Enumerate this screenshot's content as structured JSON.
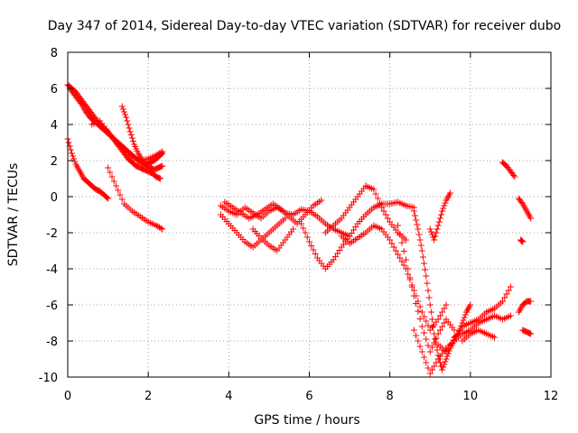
{
  "chart_data": {
    "type": "scatter",
    "title": "Day 347 of 2014, Sidereal Day-to-day VTEC variation (SDTVAR) for receiver dubo",
    "xlabel": "GPS time / hours",
    "ylabel": "SDTVAR / TECUs",
    "xlim": [
      0,
      12
    ],
    "ylim": [
      -10,
      8
    ],
    "x_ticks": [
      0,
      2,
      4,
      6,
      8,
      10,
      12
    ],
    "y_ticks": [
      -10,
      -8,
      -6,
      -4,
      -2,
      0,
      2,
      4,
      6,
      8
    ],
    "grid": true,
    "marker": "+",
    "color": "#ff0000",
    "segments": [
      {
        "x": [
          0.0,
          0.1,
          0.2,
          0.3,
          0.4,
          0.5,
          0.6,
          0.7,
          0.8,
          0.9,
          1.0,
          1.1,
          1.2,
          1.3,
          1.4,
          1.5,
          1.6,
          1.7,
          1.8,
          1.9,
          2.0,
          2.1,
          2.2,
          2.3
        ],
        "y": [
          6.2,
          6.0,
          5.8,
          5.5,
          5.2,
          4.9,
          4.6,
          4.3,
          4.0,
          3.8,
          3.6,
          3.3,
          3.0,
          2.7,
          2.4,
          2.1,
          1.9,
          1.7,
          1.6,
          1.5,
          1.4,
          1.3,
          1.1,
          1.0
        ]
      },
      {
        "x": [
          0.05,
          0.15,
          0.25,
          0.35,
          0.45,
          0.55,
          0.65,
          0.75,
          0.85,
          0.95,
          1.05,
          1.15,
          1.25,
          1.35,
          1.45,
          1.55,
          1.65,
          1.75,
          1.85,
          1.95,
          2.05,
          2.15,
          2.25,
          2.35
        ],
        "y": [
          6.0,
          5.7,
          5.4,
          5.1,
          4.7,
          4.4,
          4.2,
          4.0,
          3.8,
          3.6,
          3.4,
          3.2,
          3.0,
          2.8,
          2.6,
          2.4,
          2.2,
          2.0,
          1.9,
          1.8,
          1.9,
          2.0,
          2.2,
          2.4
        ]
      },
      {
        "x": [
          0.6,
          0.8,
          1.0,
          1.2,
          1.4,
          1.6,
          1.8,
          2.0,
          2.2,
          2.35
        ],
        "y": [
          4.0,
          4.2,
          3.6,
          3.0,
          2.6,
          2.2,
          2.0,
          2.1,
          2.3,
          2.5
        ]
      },
      {
        "x": [
          1.35,
          1.45,
          1.55,
          1.65,
          1.75,
          1.85,
          1.95,
          2.05,
          2.15,
          2.25,
          2.35
        ],
        "y": [
          5.0,
          4.4,
          3.6,
          2.9,
          2.4,
          2.0,
          1.7,
          1.6,
          1.5,
          1.6,
          1.7
        ]
      },
      {
        "x": [
          0.0,
          0.1,
          0.2,
          0.3,
          0.4,
          0.5,
          0.6,
          0.7,
          0.8,
          0.9,
          1.0
        ],
        "y": [
          3.2,
          2.4,
          1.8,
          1.4,
          1.0,
          0.8,
          0.6,
          0.4,
          0.3,
          0.1,
          -0.1
        ]
      },
      {
        "x": [
          1.0,
          1.2,
          1.4,
          1.6,
          1.8,
          2.0,
          2.2,
          2.35
        ],
        "y": [
          1.6,
          0.6,
          -0.4,
          -0.8,
          -1.1,
          -1.4,
          -1.6,
          -1.8
        ]
      },
      {
        "x": [
          3.8,
          4.0,
          4.2,
          4.4,
          4.6,
          4.8,
          5.0,
          5.2,
          5.4,
          5.6,
          5.8,
          6.0,
          6.2,
          6.4,
          6.6,
          6.8,
          7.0,
          7.2,
          7.4,
          7.6,
          7.8,
          8.0,
          8.2,
          8.4,
          8.6
        ],
        "y": [
          -0.5,
          -0.8,
          -1.0,
          -0.6,
          -0.9,
          -1.2,
          -0.8,
          -0.6,
          -0.9,
          -1.0,
          -0.7,
          -0.8,
          -1.1,
          -1.5,
          -1.8,
          -2.0,
          -2.2,
          -1.5,
          -1.0,
          -0.6,
          -0.4,
          -0.4,
          -0.3,
          -0.5,
          -0.6
        ]
      },
      {
        "x": [
          3.8,
          4.0,
          4.2,
          4.4,
          4.6,
          4.8,
          5.0,
          5.2,
          5.4
        ],
        "y": [
          -1.0,
          -1.5,
          -2.0,
          -2.5,
          -2.8,
          -2.4,
          -2.0,
          -1.6,
          -1.2
        ]
      },
      {
        "x": [
          4.6,
          4.8,
          5.0,
          5.2,
          5.4,
          5.6
        ],
        "y": [
          -1.8,
          -2.3,
          -2.7,
          -3.0,
          -2.4,
          -1.8
        ]
      },
      {
        "x": [
          3.9,
          4.1,
          4.3,
          4.5,
          4.7,
          4.9,
          5.1,
          5.3,
          5.5,
          5.7,
          5.9,
          6.1,
          6.3
        ],
        "y": [
          -0.3,
          -0.6,
          -0.9,
          -1.2,
          -1.0,
          -0.7,
          -0.4,
          -0.7,
          -1.1,
          -1.5,
          -1.0,
          -0.5,
          -0.2
        ]
      },
      {
        "x": [
          5.8,
          6.0,
          6.2,
          6.4,
          6.6,
          6.8,
          7.0
        ],
        "y": [
          -1.5,
          -2.5,
          -3.4,
          -4.0,
          -3.5,
          -2.8,
          -2.2
        ]
      },
      {
        "x": [
          6.4,
          6.6,
          6.8,
          7.0,
          7.2,
          7.4,
          7.6,
          7.8,
          8.0,
          8.2,
          8.4
        ],
        "y": [
          -2.0,
          -1.6,
          -1.2,
          -0.6,
          0.0,
          0.6,
          0.4,
          -0.6,
          -1.4,
          -2.0,
          -2.4
        ]
      },
      {
        "x": [
          6.8,
          7.0,
          7.2,
          7.4,
          7.6,
          7.8,
          8.0,
          8.2,
          8.4,
          8.6,
          8.8,
          9.0,
          9.2,
          9.4
        ],
        "y": [
          -2.2,
          -2.6,
          -2.3,
          -2.0,
          -1.6,
          -1.8,
          -2.4,
          -3.2,
          -4.0,
          -5.2,
          -6.4,
          -7.4,
          -6.8,
          -6.0
        ]
      },
      {
        "x": [
          8.2,
          8.4,
          8.6,
          8.8,
          9.0,
          9.2,
          9.4,
          9.6
        ],
        "y": [
          -1.6,
          -3.5,
          -5.5,
          -7.2,
          -8.6,
          -7.6,
          -6.8,
          -7.4
        ]
      },
      {
        "x": [
          8.6,
          8.7,
          8.8,
          8.9,
          9.0,
          9.1,
          9.2,
          9.3,
          9.4,
          9.5,
          9.6,
          9.7,
          9.8,
          9.9,
          10.0
        ],
        "y": [
          -0.8,
          -1.8,
          -3.0,
          -4.4,
          -6.0,
          -7.6,
          -8.8,
          -9.6,
          -9.0,
          -8.4,
          -7.8,
          -7.6,
          -7.0,
          -6.4,
          -6.0
        ]
      },
      {
        "x": [
          8.6,
          8.8,
          9.0,
          9.2,
          9.4,
          9.6,
          9.8,
          10.0,
          10.2,
          10.4,
          10.6,
          10.8,
          11.0
        ],
        "y": [
          -7.4,
          -8.6,
          -9.8,
          -9.0,
          -8.4,
          -8.0,
          -7.6,
          -7.4,
          -7.0,
          -6.8,
          -6.6,
          -6.8,
          -6.6
        ]
      },
      {
        "x": [
          9.2,
          9.4,
          9.6,
          9.8,
          10.0,
          10.2,
          10.4,
          10.6,
          10.8,
          11.0
        ],
        "y": [
          -8.2,
          -8.6,
          -8.0,
          -7.2,
          -7.0,
          -6.8,
          -6.4,
          -6.2,
          -5.8,
          -5.0
        ]
      },
      {
        "x": [
          9.8,
          10.0,
          10.2,
          10.4,
          10.6
        ],
        "y": [
          -8.0,
          -7.6,
          -7.4,
          -7.6,
          -7.8
        ]
      },
      {
        "x": [
          9.0,
          9.1,
          9.2,
          9.3,
          9.4,
          9.5
        ],
        "y": [
          -1.8,
          -2.4,
          -1.6,
          -0.8,
          -0.2,
          0.2
        ]
      },
      {
        "x": [
          10.8,
          10.9,
          11.0,
          11.1
        ],
        "y": [
          1.9,
          1.7,
          1.4,
          1.1
        ]
      },
      {
        "x": [
          11.2,
          11.3,
          11.4,
          11.5
        ],
        "y": [
          -0.1,
          -0.4,
          -0.8,
          -1.2
        ]
      },
      {
        "x": [
          11.25,
          11.3
        ],
        "y": [
          -2.4,
          -2.5
        ]
      },
      {
        "x": [
          11.2,
          11.3,
          11.4,
          11.5
        ],
        "y": [
          -6.4,
          -6.0,
          -5.8,
          -5.8
        ]
      },
      {
        "x": [
          11.3,
          11.4,
          11.5
        ],
        "y": [
          -7.4,
          -7.5,
          -7.6
        ]
      }
    ]
  }
}
